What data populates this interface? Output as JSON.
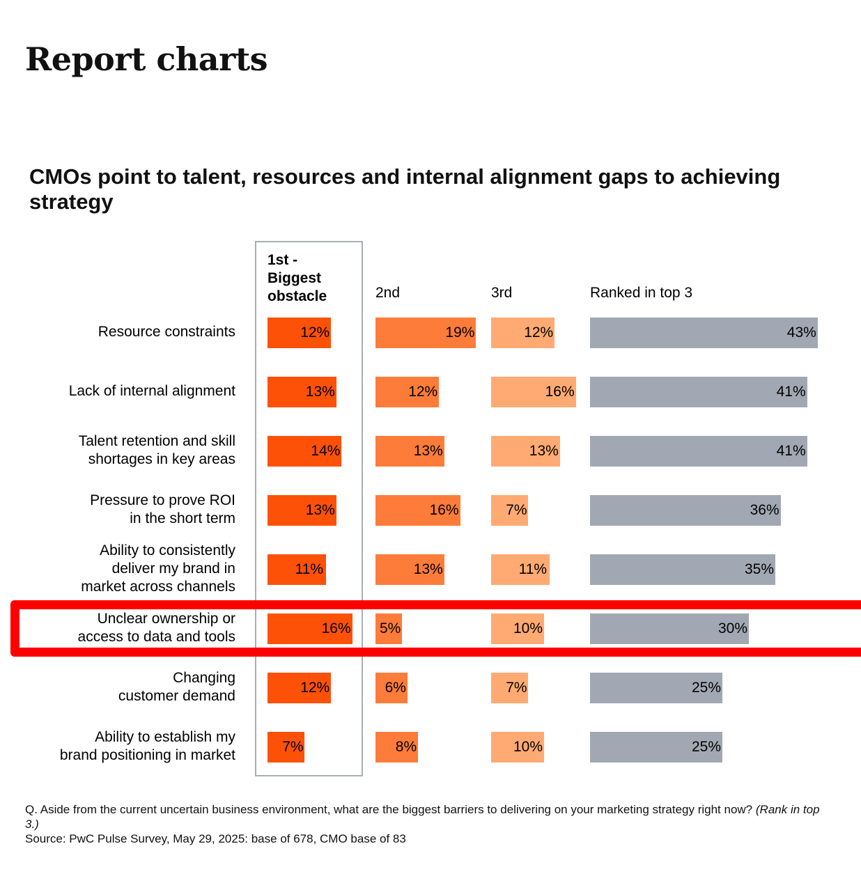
{
  "page_title": "Report charts",
  "chart_title": "CMOs point to talent, resources and internal alignment gaps to achieving strategy",
  "colors": {
    "first": "#fd5108",
    "second": "#fe7c39",
    "third": "#ffaa72",
    "top3": "#a1a8b3",
    "highlight": "#ff0000"
  },
  "chart_data": {
    "type": "bar",
    "title": "CMOs point to talent, resources and internal alignment gaps to achieving strategy",
    "categories": [
      "Resource constraints",
      "Lack of internal alignment",
      "Talent retention and skill\nshortages in key areas",
      "Pressure to prove ROI\nin the short term",
      "Ability to consistently\ndeliver my brand in\nmarket across channels",
      "Unclear ownership or\naccess to data and tools",
      "Changing\ncustomer demand",
      "Ability to establish my\nbrand positioning in market"
    ],
    "series": [
      {
        "name": "1st -\nBiggest\nobstacle",
        "values": [
          12,
          13,
          14,
          13,
          11,
          16,
          12,
          7
        ]
      },
      {
        "name": "2nd",
        "values": [
          19,
          12,
          13,
          16,
          13,
          5,
          6,
          8
        ]
      },
      {
        "name": "3rd",
        "values": [
          12,
          16,
          13,
          7,
          11,
          10,
          7,
          10
        ]
      },
      {
        "name": "Ranked in top 3",
        "values": [
          43,
          41,
          41,
          36,
          35,
          30,
          25,
          25
        ]
      }
    ],
    "unit": "%",
    "highlighted_category_index": 5
  },
  "footnote": {
    "question": "Q. Aside from the current uncertain business environment, what are the biggest barriers to delivering on your marketing strategy right now?",
    "question_note": "(Rank in top 3.)",
    "source": "Source: PwC Pulse Survey, May 29, 2025: base of 678, CMO base of 83"
  }
}
